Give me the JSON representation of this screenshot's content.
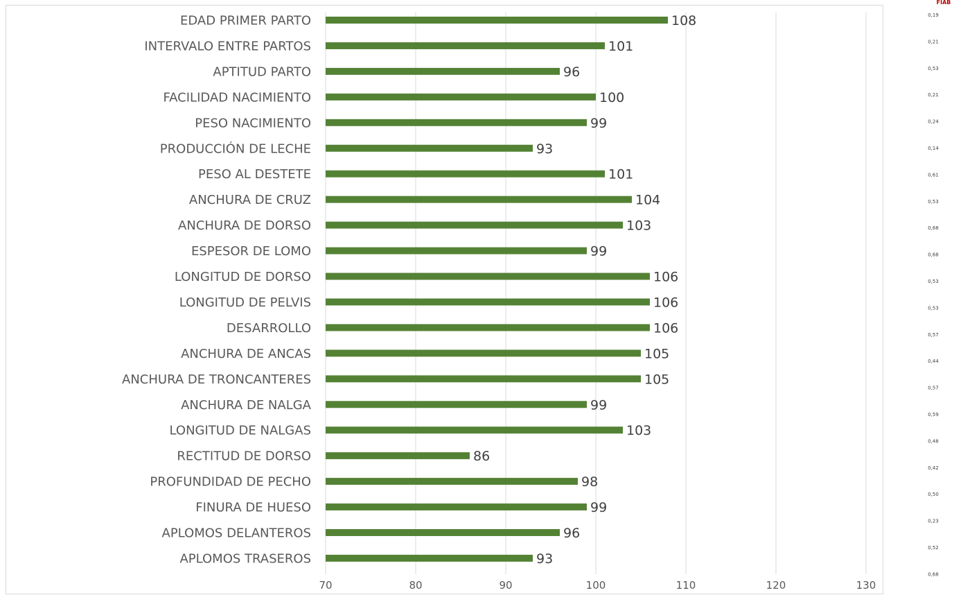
{
  "chart_data": {
    "type": "bar",
    "orientation": "horizontal",
    "categories": [
      "EDAD PRIMER PARTO",
      "INTERVALO ENTRE PARTOS",
      "APTITUD PARTO",
      "FACILIDAD NACIMIENTO",
      "PESO NACIMIENTO",
      "PRODUCCIÓN DE LECHE",
      "PESO AL DESTETE",
      "ANCHURA DE CRUZ",
      "ANCHURA DE DORSO",
      "ESPESOR DE LOMO",
      "LONGITUD DE DORSO",
      "LONGITUD DE PELVIS",
      "DESARROLLO",
      "ANCHURA DE ANCAS",
      "ANCHURA DE TRONCANTERES",
      "ANCHURA DE NALGA",
      "LONGITUD DE NALGAS",
      "RECTITUD DE DORSO",
      "PROFUNDIDAD DE PECHO",
      "FINURA DE HUESO",
      "APLOMOS DELANTEROS",
      "APLOMOS TRASEROS"
    ],
    "values": [
      108,
      101,
      96,
      100,
      99,
      93,
      101,
      104,
      103,
      99,
      106,
      106,
      106,
      105,
      105,
      99,
      103,
      86,
      98,
      99,
      96,
      93
    ],
    "value_labels": [
      "108",
      "101",
      "96",
      "100",
      "99",
      "93",
      "101",
      "104",
      "103",
      "99",
      "106",
      "106",
      "106",
      "105",
      "105",
      "99",
      "103",
      "86",
      "98",
      "99",
      "96",
      "93"
    ],
    "xlim": [
      70,
      130
    ],
    "x_ticks": [
      "70",
      "80",
      "90",
      "100",
      "110",
      "120",
      "130"
    ],
    "bar_color": "#548235",
    "grid": "vertical",
    "title": "",
    "xlabel": "",
    "ylabel": ""
  },
  "side_panel": {
    "header": "FIAB",
    "values": [
      "0,19",
      "0,21",
      "0,53",
      "0,21",
      "0,24",
      "0,14",
      "0,61",
      "0,53",
      "0,68",
      "0,68",
      "0,53",
      "0,53",
      "0,57",
      "0,44",
      "0,57",
      "0,59",
      "0,48",
      "0,42",
      "0,50",
      "0,23",
      "0,52",
      "0,68"
    ],
    "header_color": "#c00000"
  }
}
